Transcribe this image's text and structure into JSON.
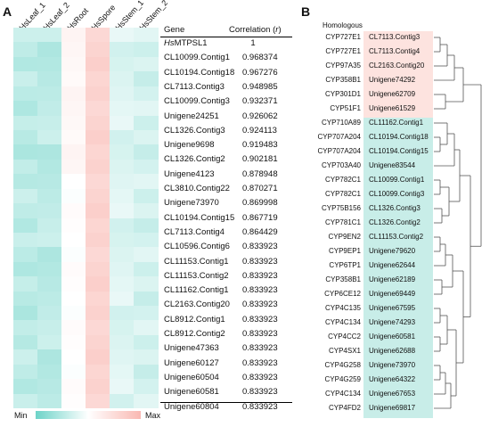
{
  "panel_a": {
    "label": "A",
    "columns": [
      "HsLeaf_1",
      "HsLeaf_2",
      "HsRoot",
      "HsSpore",
      "HsStem_1",
      "HsStem_2"
    ],
    "table": {
      "gene_header": "Gene",
      "corr_header": "Correlation (r)",
      "rows": [
        {
          "gene_prefix": "Hs",
          "gene": "MTPSL1",
          "corr": "1"
        },
        {
          "gene_prefix": "",
          "gene": "CL10099.Contig1",
          "corr": "0.968374"
        },
        {
          "gene_prefix": "",
          "gene": "CL10194.Contig18",
          "corr": "0.967276"
        },
        {
          "gene_prefix": "",
          "gene": "CL7113.Contig3",
          "corr": "0.948985"
        },
        {
          "gene_prefix": "",
          "gene": "CL10099.Contig3",
          "corr": "0.932371"
        },
        {
          "gene_prefix": "",
          "gene": "Unigene24251",
          "corr": "0.926062"
        },
        {
          "gene_prefix": "",
          "gene": "CL1326.Contig3",
          "corr": "0.924113"
        },
        {
          "gene_prefix": "",
          "gene": "Unigene9698",
          "corr": "0.919483"
        },
        {
          "gene_prefix": "",
          "gene": "CL1326.Contig2",
          "corr": "0.902181"
        },
        {
          "gene_prefix": "",
          "gene": "Unigene4123",
          "corr": "0.878948"
        },
        {
          "gene_prefix": "",
          "gene": "CL3810.Contig22",
          "corr": "0.870271"
        },
        {
          "gene_prefix": "",
          "gene": "Unigene73970",
          "corr": "0.869998"
        },
        {
          "gene_prefix": "",
          "gene": "CL10194.Contig15",
          "corr": "0.867719"
        },
        {
          "gene_prefix": "",
          "gene": "CL7113.Contig4",
          "corr": "0.864429"
        },
        {
          "gene_prefix": "",
          "gene": "CL10596.Contig6",
          "corr": "0.833923"
        },
        {
          "gene_prefix": "",
          "gene": "CL11153.Contig1",
          "corr": "0.833923"
        },
        {
          "gene_prefix": "",
          "gene": "CL11153.Contig2",
          "corr": "0.833923"
        },
        {
          "gene_prefix": "",
          "gene": "CL11162.Contig1",
          "corr": "0.833923"
        },
        {
          "gene_prefix": "",
          "gene": "CL2163.Contig20",
          "corr": "0.833923"
        },
        {
          "gene_prefix": "",
          "gene": "CL8912.Contig1",
          "corr": "0.833923"
        },
        {
          "gene_prefix": "",
          "gene": "CL8912.Contig2",
          "corr": "0.833923"
        },
        {
          "gene_prefix": "",
          "gene": "Unigene47363",
          "corr": "0.833923"
        },
        {
          "gene_prefix": "",
          "gene": "Unigene60127",
          "corr": "0.833923"
        },
        {
          "gene_prefix": "",
          "gene": "Unigene60504",
          "corr": "0.833923"
        },
        {
          "gene_prefix": "",
          "gene": "Unigene60581",
          "corr": "0.833923"
        },
        {
          "gene_prefix": "",
          "gene": "Unigene60804",
          "corr": "0.833923"
        }
      ]
    },
    "legend": {
      "min": "Min",
      "max": "Max",
      "colors": [
        "#6dd3c8",
        "#ffffff",
        "#f9b8b2"
      ]
    }
  },
  "panel_b": {
    "label": "B",
    "homologous_header": "Homologous",
    "pink_color": "#fde3df",
    "teal_color": "#c8ede8",
    "rows": [
      {
        "homolog": "CYP727E1",
        "gene": "CL7113.Contig3",
        "group": "pink"
      },
      {
        "homolog": "CYP727E1",
        "gene": "CL7113.Contig4",
        "group": "pink"
      },
      {
        "homolog": "CYP97A35",
        "gene": "CL2163.Contig20",
        "group": "pink"
      },
      {
        "homolog": "CYP358B1",
        "gene": "Unigene74292",
        "group": "pink"
      },
      {
        "homolog": "CYP301D1",
        "gene": "Unigene62709",
        "group": "pink"
      },
      {
        "homolog": "CYP51F1",
        "gene": "Unigene61529",
        "group": "pink"
      },
      {
        "homolog": "CYP710A89",
        "gene": "CL11162.Contig1",
        "group": "teal"
      },
      {
        "homolog": "CYP707A204",
        "gene": "CL10194.Contig18",
        "group": "teal"
      },
      {
        "homolog": "CYP707A204",
        "gene": "CL10194.Contig15",
        "group": "teal"
      },
      {
        "homolog": "CYP703A40",
        "gene": "Unigene83544",
        "group": "teal"
      },
      {
        "homolog": "CYP782C1",
        "gene": "CL10099.Contig1",
        "group": "teal"
      },
      {
        "homolog": "CYP782C1",
        "gene": "CL10099.Contig3",
        "group": "teal"
      },
      {
        "homolog": "CYP75B156",
        "gene": "CL1326.Contig3",
        "group": "teal"
      },
      {
        "homolog": "CYP781C1",
        "gene": "CL1326.Contig2",
        "group": "teal"
      },
      {
        "homolog": "CYP9EN2",
        "gene": "CL11153.Contig2",
        "group": "teal"
      },
      {
        "homolog": "CYP9EP1",
        "gene": "Unigene79620",
        "group": "teal"
      },
      {
        "homolog": "CYP6TP1",
        "gene": "Unigene62644",
        "group": "teal"
      },
      {
        "homolog": "CYP358B1",
        "gene": "Unigene62189",
        "group": "teal"
      },
      {
        "homolog": "CYP6CE12",
        "gene": "Unigene69449",
        "group": "teal"
      },
      {
        "homolog": "CYP4C135",
        "gene": "Unigene67595",
        "group": "teal"
      },
      {
        "homolog": "CYP4C134",
        "gene": "Unigene74293",
        "group": "teal"
      },
      {
        "homolog": "CYP4CC2",
        "gene": "Unigene60581",
        "group": "teal"
      },
      {
        "homolog": "CYP4SX1",
        "gene": "Unigene62688",
        "group": "teal"
      },
      {
        "homolog": "CYP4G258",
        "gene": "Unigene73970",
        "group": "teal"
      },
      {
        "homolog": "CYP4G259",
        "gene": "Unigene64322",
        "group": "teal"
      },
      {
        "homolog": "CYP4C134",
        "gene": "Unigene67653",
        "group": "teal"
      },
      {
        "homolog": "CYP4FD2",
        "gene": "Unigene69817",
        "group": "teal"
      }
    ]
  }
}
